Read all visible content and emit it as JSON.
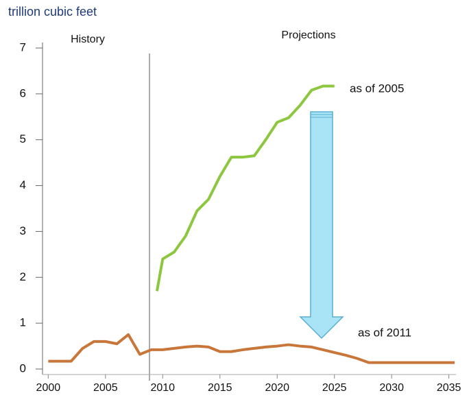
{
  "chart_data": {
    "type": "line",
    "title": "trillion cubic feet",
    "annotations": [
      "History",
      "Projections"
    ],
    "xlim": [
      1999.5,
      2035.5
    ],
    "xticks": [
      2000,
      2005,
      2010,
      2015,
      2020,
      2025,
      2030,
      2035
    ],
    "ylim": [
      0,
      7
    ],
    "yticks": [
      0,
      1,
      2,
      3,
      4,
      5,
      6,
      7
    ],
    "grid": false,
    "series": [
      {
        "name": "as of 2005",
        "color": "#8dc63f",
        "x": [
          2009.5,
          2010,
          2011,
          2012,
          2013,
          2014,
          2015,
          2016,
          2017,
          2018,
          2019,
          2020,
          2021,
          2022,
          2023,
          2024,
          2025
        ],
        "values": [
          1.7,
          2.4,
          2.55,
          2.9,
          3.45,
          3.7,
          4.2,
          4.62,
          4.62,
          4.65,
          5.0,
          5.38,
          5.48,
          5.75,
          6.08,
          6.17,
          6.17
        ]
      },
      {
        "name": "as of 2011",
        "color": "#c8763a",
        "x": [
          2000,
          2001,
          2002,
          2003,
          2004,
          2005,
          2006,
          2007,
          2008,
          2009,
          2010,
          2011,
          2012,
          2013,
          2014,
          2015,
          2016,
          2017,
          2018,
          2019,
          2020,
          2021,
          2022,
          2023,
          2024,
          2025,
          2026,
          2027,
          2028,
          2029,
          2030,
          2031,
          2032,
          2033,
          2034,
          2035,
          2035.5
        ],
        "values": [
          0.17,
          0.17,
          0.17,
          0.45,
          0.6,
          0.6,
          0.55,
          0.75,
          0.32,
          0.42,
          0.42,
          0.45,
          0.48,
          0.5,
          0.48,
          0.38,
          0.38,
          0.42,
          0.45,
          0.48,
          0.5,
          0.53,
          0.5,
          0.48,
          0.42,
          0.36,
          0.3,
          0.23,
          0.14,
          0.14,
          0.14,
          0.14,
          0.14,
          0.14,
          0.14,
          0.14,
          0.14
        ]
      }
    ]
  }
}
